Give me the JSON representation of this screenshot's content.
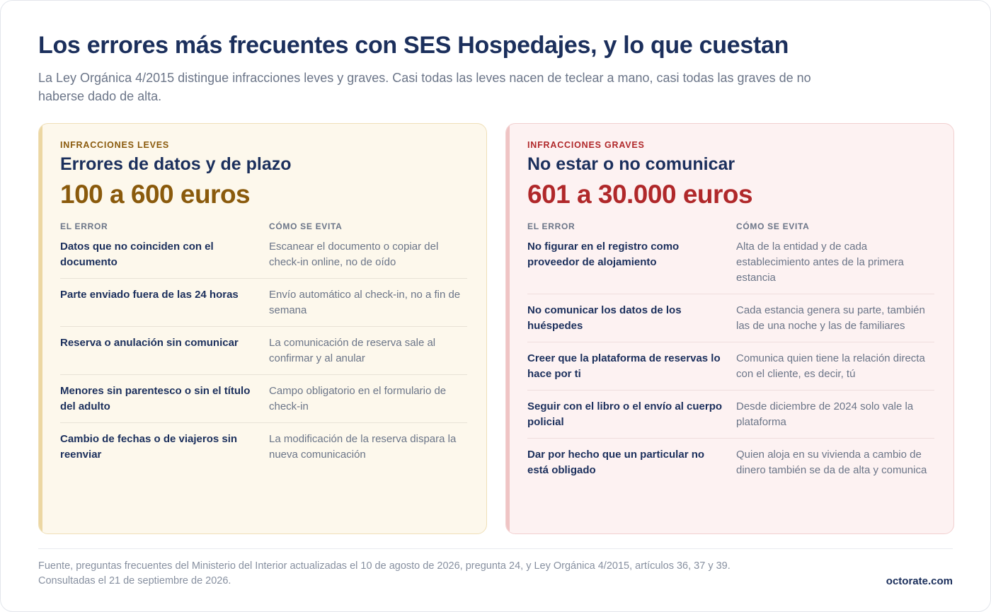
{
  "header": {
    "title": "Los errores más frecuentes con SES Hospedajes, y lo que cuestan",
    "subtitle": "La Ley Orgánica 4/2015 distingue infracciones leves y graves. Casi todas las leves nacen de teclear a mano, casi todas las graves de no haberse dado de alta."
  },
  "leves": {
    "kicker": "INFRACCIONES LEVES",
    "title": "Errores de datos y de plazo",
    "amount": "100 a 600 euros",
    "col_error": "EL ERROR",
    "col_fix": "CÓMO SE EVITA",
    "rows": [
      {
        "error": "Datos que no coinciden con el documento",
        "fix": "Escanear el documento o copiar del check-in online, no de oído"
      },
      {
        "error": "Parte enviado fuera de las 24 horas",
        "fix": "Envío automático al check-in, no a fin de semana"
      },
      {
        "error": "Reserva o anulación sin comunicar",
        "fix": "La comunicación de reserva sale al confirmar y al anular"
      },
      {
        "error": "Menores sin parentesco o sin el título del adulto",
        "fix": "Campo obligatorio en el formulario de check-in"
      },
      {
        "error": "Cambio de fechas o de viajeros sin reenviar",
        "fix": "La modificación de la reserva dispara la nueva comunicación"
      }
    ]
  },
  "graves": {
    "kicker": "INFRACCIONES GRAVES",
    "title": "No estar o no comunicar",
    "amount": "601 a 30.000 euros",
    "col_error": "EL ERROR",
    "col_fix": "CÓMO SE EVITA",
    "rows": [
      {
        "error": "No figurar en el registro como proveedor de alojamiento",
        "fix": "Alta de la entidad y de cada establecimiento antes de la primera estancia"
      },
      {
        "error": "No comunicar los datos de los huéspedes",
        "fix": "Cada estancia genera su parte, también las de una noche y las de familiares"
      },
      {
        "error": "Creer que la plataforma de reservas lo hace por ti",
        "fix": "Comunica quien tiene la relación directa con el cliente, es decir, tú"
      },
      {
        "error": "Seguir con el libro o el envío al cuerpo policial",
        "fix": "Desde diciembre de 2024 solo vale la plataforma"
      },
      {
        "error": "Dar por hecho que un particular no está obligado",
        "fix": "Quien aloja en su vivienda a cambio de dinero también se da de alta y comunica"
      }
    ]
  },
  "footer": {
    "source_line1": "Fuente, preguntas frecuentes del Ministerio del Interior actualizadas el 10 de agosto de 2026, pregunta 24, y Ley Orgánica 4/2015, artículos 36, 37 y 39.",
    "source_line2": "Consultadas el 21 de septiembre de 2026.",
    "brand": "octorate.com"
  },
  "colors": {
    "navy": "#1b2f5c",
    "leves_accent": "#8a5a0c",
    "graves_accent": "#b0282a",
    "leves_bg": "#fdf8ec",
    "graves_bg": "#fdf2f2"
  }
}
